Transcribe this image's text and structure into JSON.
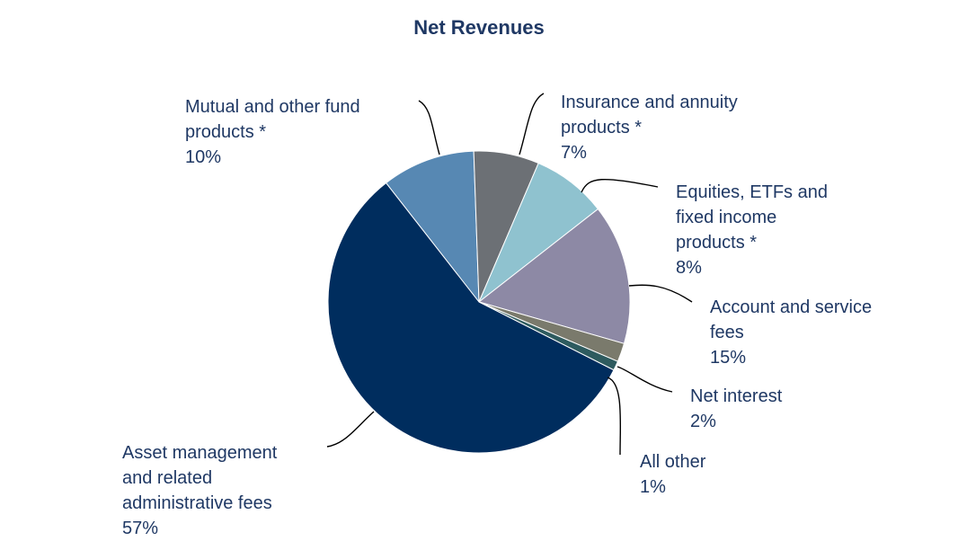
{
  "chart_data": {
    "type": "pie",
    "title": "Net Revenues",
    "slices": [
      {
        "key": "mutual",
        "label_lines": [
          "Mutual and other fund",
          "products *"
        ],
        "pct_label": "10%",
        "value": 10,
        "color": "#5788b3"
      },
      {
        "key": "insurance",
        "label_lines": [
          "Insurance and annuity",
          "products *"
        ],
        "pct_label": "7%",
        "value": 7,
        "color": "#6c7075"
      },
      {
        "key": "equities",
        "label_lines": [
          "Equities, ETFs and",
          "fixed income",
          "products *"
        ],
        "pct_label": "8%",
        "value": 8,
        "color": "#8fc2cf"
      },
      {
        "key": "account",
        "label_lines": [
          "Account and service",
          "fees"
        ],
        "pct_label": "15%",
        "value": 15,
        "color": "#8d89a5"
      },
      {
        "key": "netinterest",
        "label_lines": [
          "Net interest"
        ],
        "pct_label": "2%",
        "value": 2,
        "color": "#7a7a6c"
      },
      {
        "key": "allother",
        "label_lines": [
          "All other"
        ],
        "pct_label": "1%",
        "value": 1,
        "color": "#2e5b5f"
      },
      {
        "key": "asset",
        "label_lines": [
          "Asset management",
          "and related",
          "administrative fees"
        ],
        "pct_label": "57%",
        "value": 57,
        "color": "#002d5e"
      }
    ],
    "start_angle_deg": -38,
    "direction": "clockwise"
  },
  "colors": {
    "text": "#1f3864",
    "title": "#1f3864",
    "leader": "#000000"
  }
}
